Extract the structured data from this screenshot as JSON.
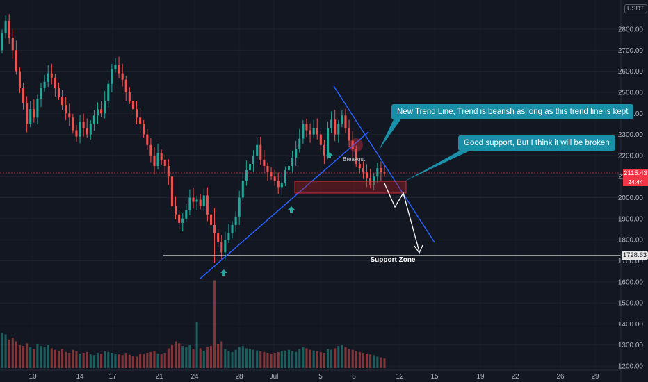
{
  "currency": "USDT",
  "last_price": {
    "value": "2115.43",
    "countdown": "24:44"
  },
  "callouts": {
    "trend": "New Trend Line, Trend is bearish as long as this trend line is kept",
    "support": "Good support, But I think it will be broken"
  },
  "colors": {
    "background": "#131722",
    "up": "#26a69a",
    "down": "#ef5350",
    "trendline": "#2962ff",
    "callout": "#1a8fa8",
    "last_price": "#f23645"
  },
  "chart_data": {
    "type": "candlestick",
    "title": "",
    "ylim": [
      1200,
      2900
    ],
    "y_ticks": [
      2800,
      2700,
      2600,
      2500,
      2400,
      2300,
      2200,
      2100,
      2000,
      1900,
      1800,
      1700,
      1600,
      1500,
      1400,
      1300,
      1200
    ],
    "y_tick_labels": [
      "2800.00",
      "2700.00",
      "2600.00",
      "2500.00",
      "2400.00",
      "2300.00",
      "2200.00",
      "2100.00",
      "2000.00",
      "1900.00",
      "1800.00",
      "1700.00",
      "1600.00",
      "1500.00",
      "1400.00",
      "1300.00",
      "1200.00"
    ],
    "x_labels": [
      "10",
      "14",
      "17",
      "21",
      "24",
      "28",
      "Jul",
      "5",
      "8",
      "12",
      "15",
      "19",
      "22",
      "26",
      "29"
    ],
    "closes": [
      2780,
      2840,
      2760,
      2700,
      2600,
      2520,
      2450,
      2350,
      2420,
      2380,
      2470,
      2520,
      2550,
      2590,
      2570,
      2520,
      2480,
      2440,
      2400,
      2380,
      2320,
      2290,
      2360,
      2330,
      2300,
      2350,
      2390,
      2420,
      2400,
      2460,
      2540,
      2610,
      2630,
      2590,
      2560,
      2500,
      2460,
      2420,
      2380,
      2350,
      2300,
      2250,
      2200,
      2150,
      2210,
      2180,
      2150,
      2100,
      1960,
      1920,
      1880,
      1900,
      1940,
      2000,
      1980,
      1990,
      1960,
      2010,
      1920,
      1870,
      1830,
      1790,
      1740,
      1800,
      1830,
      1870,
      1910,
      2000,
      2080,
      2130,
      2160,
      2200,
      2250,
      2180,
      2150,
      2120,
      2100,
      2080,
      2050,
      2070,
      2130,
      2150,
      2190,
      2230,
      2280,
      2350,
      2320,
      2300,
      2330,
      2300,
      2250,
      2200,
      2330,
      2370,
      2300,
      2350,
      2390,
      2330,
      2270,
      2230,
      2160,
      2140,
      2120,
      2090,
      2060,
      2100,
      2140,
      2120,
      2115
    ],
    "volumes": [
      92,
      88,
      75,
      80,
      70,
      60,
      58,
      65,
      55,
      50,
      62,
      58,
      55,
      60,
      52,
      48,
      45,
      50,
      42,
      40,
      48,
      44,
      38,
      40,
      42,
      36,
      34,
      40,
      38,
      45,
      42,
      40,
      38,
      36,
      34,
      40,
      35,
      32,
      30,
      38,
      36,
      40,
      42,
      45,
      38,
      36,
      40,
      52,
      60,
      70,
      65,
      58,
      55,
      60,
      50,
      48,
      52,
      45,
      55,
      58,
      60,
      62,
      70,
      50,
      45,
      42,
      48,
      55,
      58,
      52,
      50,
      48,
      46,
      44,
      42,
      40,
      38,
      40,
      42,
      44,
      46,
      48,
      45,
      42,
      50,
      55,
      52,
      48,
      46,
      44,
      42,
      40,
      50,
      48,
      52,
      58,
      60,
      55,
      50,
      48,
      45,
      42,
      40,
      38,
      36,
      34,
      30,
      28,
      25
    ],
    "spike_volumes": [
      {
        "index": 55,
        "value": 120
      },
      {
        "index": 60,
        "value": 230
      }
    ],
    "annotations": {
      "support_zone": {
        "label": "Support Zone",
        "price": 1728.63,
        "price_label": "1728.63"
      },
      "breakout_label": "Breakout",
      "support_box": [
        2020,
        2080
      ]
    }
  }
}
